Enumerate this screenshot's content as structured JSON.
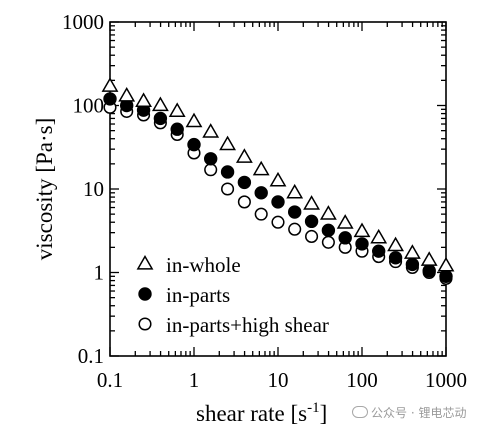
{
  "chart_data": {
    "type": "scatter",
    "xscale": "log",
    "yscale": "log",
    "xlim": [
      0.1,
      1000
    ],
    "ylim": [
      0.1,
      1000
    ],
    "xlabel": "shear rate [s",
    "xlabel_sup": "-1",
    "xlabel_end": "]",
    "ylabel": "viscosity [Pa·s]",
    "x_ticks": [
      {
        "value": 0.1,
        "label": "0.1"
      },
      {
        "value": 1,
        "label": "1"
      },
      {
        "value": 10,
        "label": "10"
      },
      {
        "value": 100,
        "label": "100"
      },
      {
        "value": 1000,
        "label": "1000"
      }
    ],
    "y_ticks": [
      {
        "value": 0.1,
        "label": "0.1"
      },
      {
        "value": 1,
        "label": "1"
      },
      {
        "value": 10,
        "label": "10"
      },
      {
        "value": 100,
        "label": "100"
      },
      {
        "value": 1000,
        "label": "1000"
      }
    ],
    "grid": false,
    "legend_position": "bottom-left",
    "series": [
      {
        "name": "in-whole",
        "marker": "open-triangle",
        "points": [
          [
            0.1,
            170
          ],
          [
            0.158,
            130
          ],
          [
            0.251,
            112
          ],
          [
            0.398,
            100
          ],
          [
            0.631,
            85
          ],
          [
            1.0,
            64
          ],
          [
            1.58,
            48
          ],
          [
            2.51,
            34
          ],
          [
            3.98,
            24
          ],
          [
            6.31,
            17
          ],
          [
            10.0,
            12.5
          ],
          [
            15.8,
            9
          ],
          [
            25.1,
            6.6
          ],
          [
            39.8,
            5.0
          ],
          [
            63.1,
            3.9
          ],
          [
            100,
            3.1
          ],
          [
            158,
            2.6
          ],
          [
            251,
            2.1
          ],
          [
            398,
            1.7
          ],
          [
            631,
            1.4
          ],
          [
            1000,
            1.2
          ]
        ]
      },
      {
        "name": "in-parts",
        "marker": "filled-circle",
        "points": [
          [
            0.1,
            120
          ],
          [
            0.158,
            100
          ],
          [
            0.251,
            88
          ],
          [
            0.398,
            70
          ],
          [
            0.631,
            52
          ],
          [
            1.0,
            34
          ],
          [
            1.58,
            23
          ],
          [
            2.51,
            16
          ],
          [
            3.98,
            12
          ],
          [
            6.31,
            9
          ],
          [
            10.0,
            7
          ],
          [
            15.8,
            5.3
          ],
          [
            25.1,
            4.1
          ],
          [
            39.8,
            3.2
          ],
          [
            63.1,
            2.6
          ],
          [
            100,
            2.2
          ],
          [
            158,
            1.8
          ],
          [
            251,
            1.5
          ],
          [
            398,
            1.25
          ],
          [
            631,
            1.05
          ],
          [
            1000,
            0.9
          ]
        ]
      },
      {
        "name": "in-parts+high shear",
        "marker": "open-circle",
        "points": [
          [
            0.1,
            95
          ],
          [
            0.158,
            85
          ],
          [
            0.251,
            77
          ],
          [
            0.398,
            62
          ],
          [
            0.631,
            45
          ],
          [
            1.0,
            27
          ],
          [
            1.58,
            17
          ],
          [
            2.51,
            10
          ],
          [
            3.98,
            7
          ],
          [
            6.31,
            5
          ],
          [
            10.0,
            4
          ],
          [
            15.8,
            3.3
          ],
          [
            25.1,
            2.7
          ],
          [
            39.8,
            2.3
          ],
          [
            63.1,
            2.0
          ],
          [
            100,
            1.8
          ],
          [
            158,
            1.55
          ],
          [
            251,
            1.35
          ],
          [
            398,
            1.15
          ],
          [
            631,
            1.0
          ],
          [
            1000,
            0.85
          ]
        ]
      }
    ]
  },
  "watermark": {
    "text": "公众号 · 锂电芯动"
  }
}
